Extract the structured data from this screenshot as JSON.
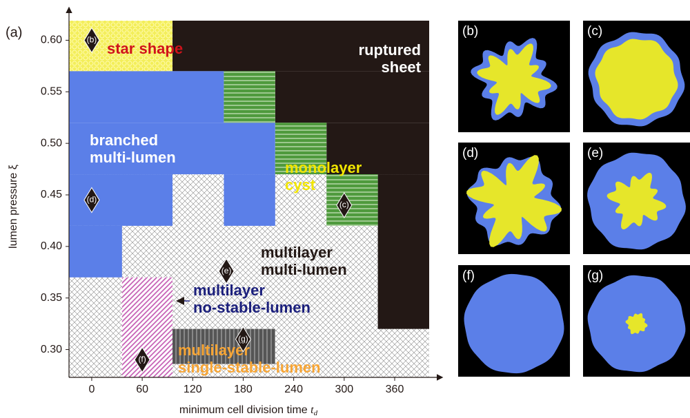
{
  "chart_data": {
    "type": "phase-diagram",
    "panel_label": "(a)",
    "xlabel": "minimum cell division time",
    "xlabel_var": "t",
    "xlabel_sub": "d",
    "ylabel": "lumen pressure ξ",
    "xlim": [
      -27,
      401
    ],
    "ylim": [
      0.273,
      0.619
    ],
    "xticks": [
      0,
      60,
      120,
      180,
      240,
      300,
      360
    ],
    "yticks": [
      {
        "value": 0.3,
        "label": "0.30"
      },
      0.35,
      {
        "value": 0.4,
        "label": "0.40"
      },
      0.45,
      {
        "value": 0.5,
        "label": "0.50"
      },
      0.55,
      {
        "value": 0.6,
        "label": "0.60"
      }
    ],
    "phases": [
      {
        "label": [
          "multilayer",
          "multi-lumen"
        ],
        "label_color": "#231815",
        "color": "#8a8a8a",
        "pattern": "cross",
        "rects": [
          [
            -27,
            401,
            0.273,
            0.47
          ]
        ]
      },
      {
        "label": [
          "star shape"
        ],
        "label_color": "#d0121b",
        "color": "#f3ee5a",
        "pattern": "dots",
        "rects": [
          [
            -27,
            96,
            0.57,
            0.619
          ]
        ]
      },
      {
        "label": [
          "ruptured",
          "sheet"
        ],
        "label_color": "#ffffff",
        "color": "#231815",
        "pattern": "solid",
        "rects": [
          [
            96,
            401,
            0.57,
            0.619
          ],
          [
            218,
            401,
            0.52,
            0.57
          ],
          [
            279,
            401,
            0.47,
            0.52
          ],
          [
            340,
            401,
            0.32,
            0.47
          ]
        ]
      },
      {
        "label": [
          "branched",
          "multi-lumen"
        ],
        "label_color": "#ffffff",
        "color": "#5b7fe8",
        "pattern": "solid",
        "rects": [
          [
            -27,
            157,
            0.52,
            0.57
          ],
          [
            -27,
            218,
            0.47,
            0.52
          ],
          [
            -27,
            96,
            0.42,
            0.47
          ],
          [
            157,
            218,
            0.42,
            0.47
          ],
          [
            -27,
            36,
            0.37,
            0.42
          ]
        ]
      },
      {
        "label": [
          "monolayer",
          "cyst"
        ],
        "label_color": "#f2e600",
        "color": "#4f9a3d",
        "pattern": "hlines",
        "rects": [
          [
            157,
            218,
            0.52,
            0.57
          ],
          [
            218,
            279,
            0.47,
            0.52
          ],
          [
            279,
            340,
            0.42,
            0.47
          ]
        ]
      },
      {
        "label": [
          "multilayer",
          "no-stable-lumen"
        ],
        "label_color": "#1b1f7c",
        "color": "#c763b7",
        "pattern": "diag",
        "rects": [
          [
            36,
            96,
            0.273,
            0.37
          ]
        ]
      },
      {
        "label": [
          "multilayer",
          "single-stable-lumen"
        ],
        "label_color": "#f7a535",
        "color": "#555555",
        "pattern": "vlines",
        "rects": [
          [
            96,
            218,
            0.286,
            0.32
          ]
        ]
      }
    ],
    "markers": [
      {
        "label": "(b)",
        "x": 0,
        "y": 0.6
      },
      {
        "label": "(c)",
        "x": 300,
        "y": 0.44
      },
      {
        "label": "(d)",
        "x": 0,
        "y": 0.445
      },
      {
        "label": "(e)",
        "x": 160,
        "y": 0.376
      },
      {
        "label": "(f)",
        "x": 60,
        "y": 0.29
      },
      {
        "label": "(g)",
        "x": 180,
        "y": 0.31
      }
    ],
    "panels": [
      "(b)",
      "(c)",
      "(d)",
      "(e)",
      "(f)",
      "(g)"
    ]
  }
}
